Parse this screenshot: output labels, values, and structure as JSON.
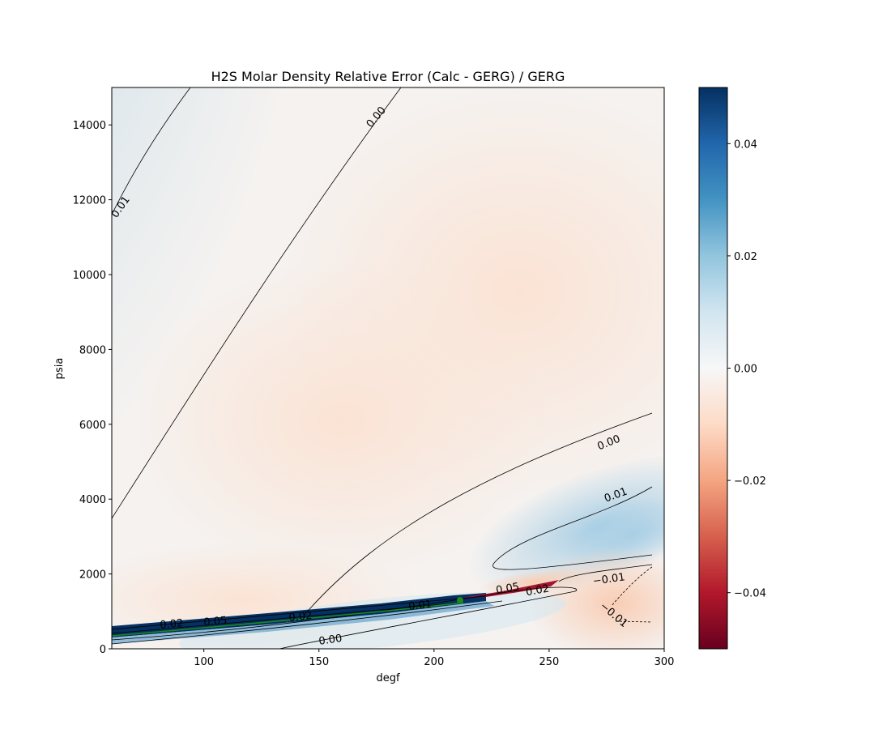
{
  "chart_data": {
    "type": "heatmap",
    "title": "H2S Molar Density Relative Error (Calc - GERG) / GERG",
    "xlabel": "degf",
    "ylabel": "psia",
    "xlim": [
      60,
      300
    ],
    "ylim": [
      0,
      15000
    ],
    "x_ticks": [
      "100",
      "150",
      "200",
      "250",
      "300"
    ],
    "y_ticks": [
      "0",
      "2000",
      "4000",
      "6000",
      "8000",
      "10000",
      "12000",
      "14000"
    ],
    "colorbar": {
      "colormap": "RdBu",
      "range": [
        -0.05,
        0.05
      ],
      "ticks": [
        "0.04",
        "0.02",
        "0.00",
        "−0.02",
        "−0.04"
      ],
      "tick_values": [
        0.04,
        0.02,
        0.0,
        -0.02,
        -0.04
      ]
    },
    "contour_labels": [
      {
        "text": "0.00",
        "x": 175,
        "y": 14200
      },
      {
        "text": "0.01",
        "x": 64,
        "y": 11800
      },
      {
        "text": "0.00",
        "x": 276,
        "y": 5500
      },
      {
        "text": "0.01",
        "x": 279,
        "y": 4100
      },
      {
        "text": "−0.01",
        "x": 276,
        "y": 1850
      },
      {
        "text": "−0.01",
        "x": 278,
        "y": 900
      },
      {
        "text": "0.02",
        "x": 86,
        "y": 650
      },
      {
        "text": "0.05",
        "x": 105,
        "y": 720
      },
      {
        "text": "0.02",
        "x": 142,
        "y": 850
      },
      {
        "text": "0.00",
        "x": 155,
        "y": 230
      },
      {
        "text": "0.01",
        "x": 194,
        "y": 1150
      },
      {
        "text": "0.02",
        "x": 245,
        "y": 1550
      },
      {
        "text": "0.05",
        "x": 232,
        "y": 1600
      }
    ],
    "colors": {
      "red_dark": "#67001f",
      "blue_dark": "#053061",
      "neutral": "#f7f7f7",
      "contour_line": "#000000",
      "green_line": "#1a8a1a"
    }
  }
}
